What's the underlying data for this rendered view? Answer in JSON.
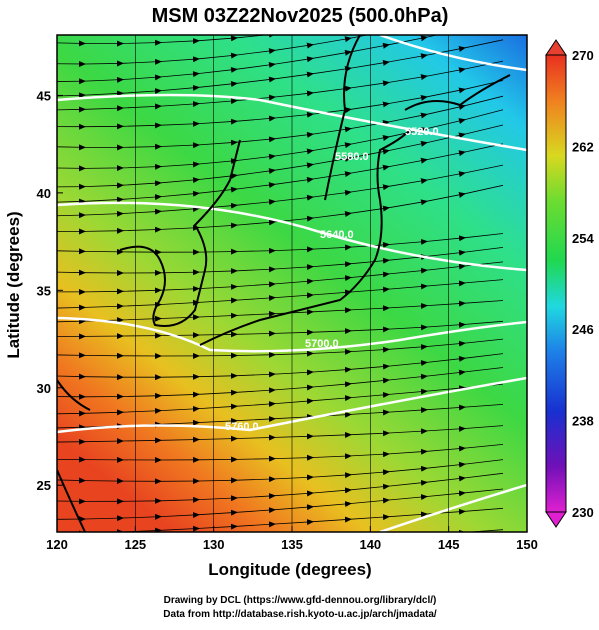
{
  "title": "MSM 03Z22Nov2025 (500.0hPa)",
  "x_axis": {
    "label": "Longitude (degrees)",
    "lim": [
      120,
      150
    ],
    "ticks": [
      120,
      125,
      130,
      135,
      140,
      145,
      150
    ]
  },
  "y_axis": {
    "label": "Latitude  (degrees)",
    "lim": [
      22.6,
      48.1
    ],
    "ticks": [
      25,
      30,
      35,
      40,
      45
    ]
  },
  "colorbar": {
    "lim": [
      230,
      270
    ],
    "ticks": [
      230,
      238,
      246,
      254,
      262,
      270
    ]
  },
  "contour_labels": [
    "5520.0",
    "5580.0",
    "5640.0",
    "5700.0",
    "5760.0"
  ],
  "footer": [
    "Drawing by DCL (https://www.gfd-dennou.org/library/dcl/)",
    "Data from http://database.rish.kyoto-u.ac.jp/arch/jmadata/"
  ]
}
